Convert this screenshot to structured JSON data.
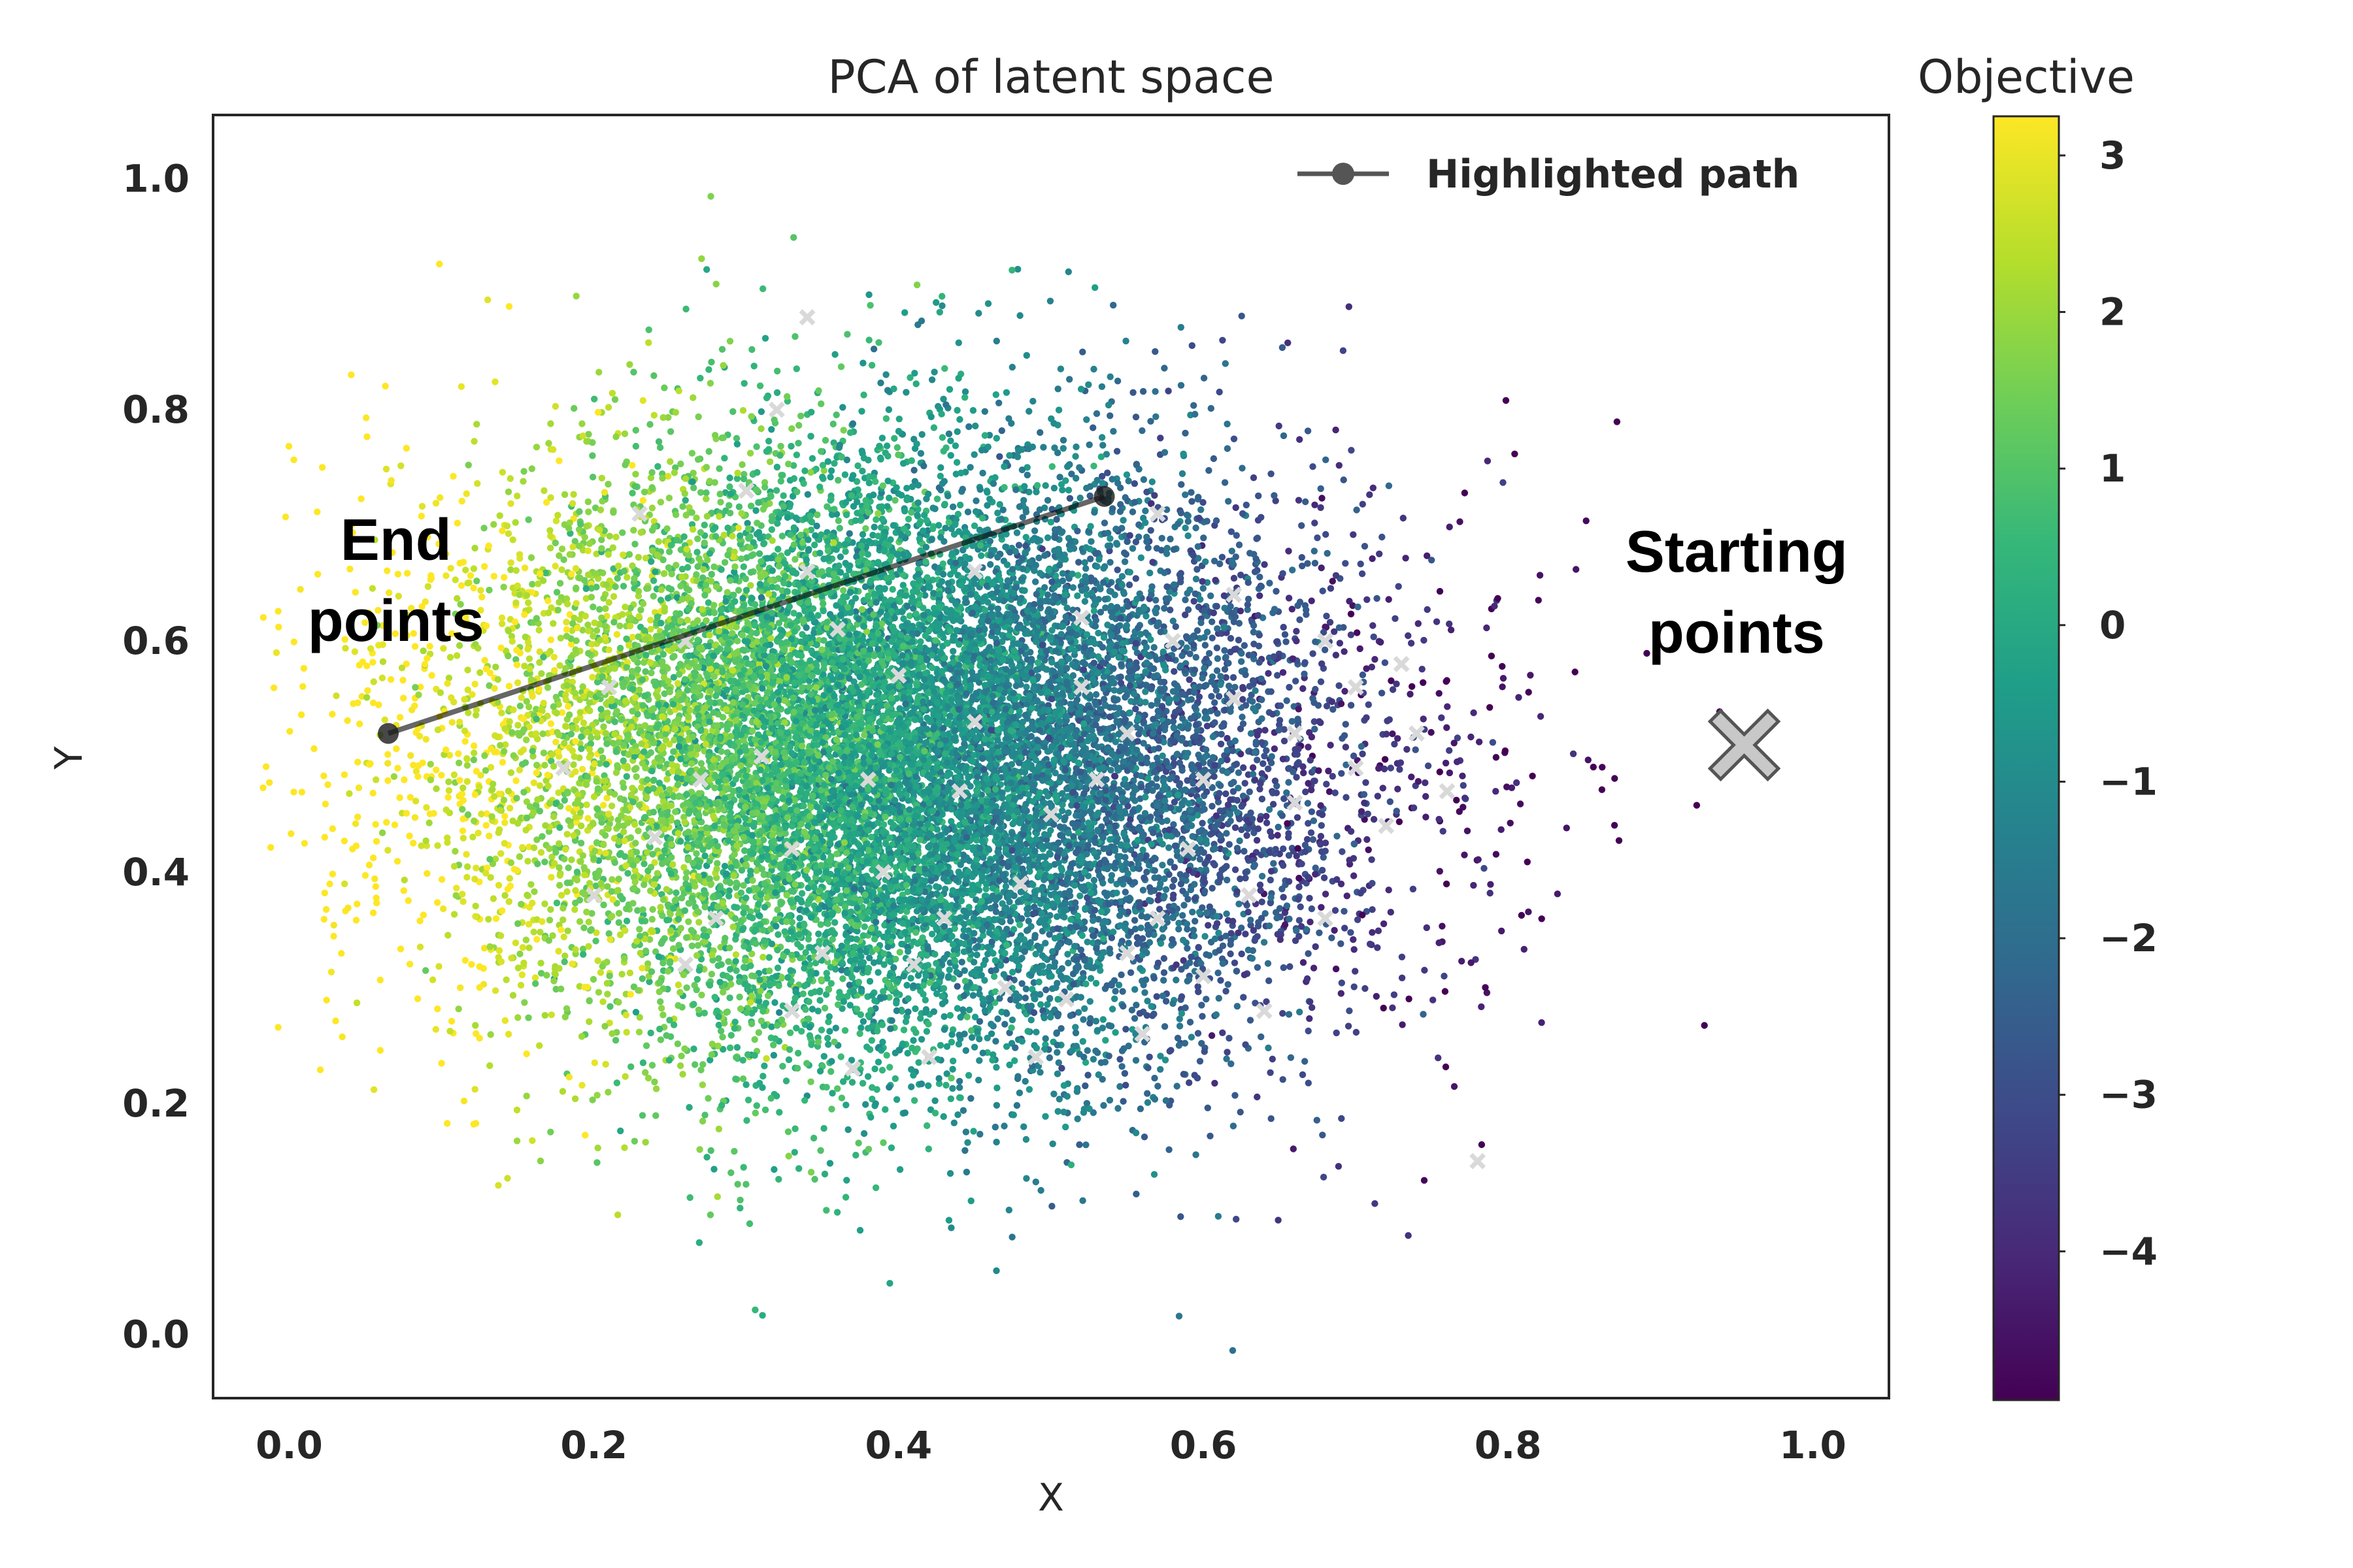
{
  "chart_data": {
    "type": "scatter",
    "title": "PCA of latent space",
    "xlabel": "X",
    "ylabel": "Y",
    "xlim": [
      -0.05,
      1.05
    ],
    "ylim": [
      -0.055,
      1.055
    ],
    "xticks": [
      0.0,
      0.2,
      0.4,
      0.6,
      0.8,
      1.0
    ],
    "yticks": [
      0.0,
      0.2,
      0.4,
      0.6,
      0.8,
      1.0
    ],
    "xtick_labels": [
      "0.0",
      "0.2",
      "0.4",
      "0.6",
      "0.8",
      "1.0"
    ],
    "ytick_labels": [
      "0.0",
      "0.2",
      "0.4",
      "0.6",
      "0.8",
      "1.0"
    ],
    "grid": false,
    "legend": {
      "position": "top-right",
      "entries": [
        "Highlighted path"
      ]
    },
    "colorbar": {
      "label": "Objective",
      "range": [
        -4.95,
        3.25
      ],
      "ticks": [
        3,
        2,
        1,
        0,
        -1,
        -2,
        -3,
        -4
      ],
      "tick_labels": [
        "3",
        "2",
        "1",
        "0",
        "−1",
        "−2",
        "−3",
        "−4"
      ],
      "colormap": "viridis"
    },
    "series": [
      {
        "name": "Highlighted path",
        "type": "line",
        "color": "#000000",
        "points": [
          [
            0.065,
            0.52
          ],
          [
            0.535,
            0.725
          ]
        ]
      },
      {
        "type": "scatter-cloud",
        "point_count_approx": 60000,
        "center": [
          0.4,
          0.5
        ],
        "x_range": [
          0.0,
          1.0
        ],
        "y_range": [
          0.0,
          0.99
        ],
        "value_trend": "objective decreases from about 3 at low X to about -4 at high X"
      },
      {
        "type": "markers",
        "marker": "x",
        "color": "#d9d9d9",
        "sample_points": [
          [
            0.23,
            0.71
          ],
          [
            0.3,
            0.73
          ],
          [
            0.34,
            0.66
          ],
          [
            0.45,
            0.66
          ],
          [
            0.52,
            0.62
          ],
          [
            0.58,
            0.6
          ],
          [
            0.62,
            0.55
          ],
          [
            0.66,
            0.52
          ],
          [
            0.7,
            0.56
          ],
          [
            0.55,
            0.52
          ],
          [
            0.5,
            0.45
          ],
          [
            0.48,
            0.39
          ],
          [
            0.43,
            0.36
          ],
          [
            0.57,
            0.36
          ],
          [
            0.63,
            0.38
          ],
          [
            0.66,
            0.46
          ],
          [
            0.6,
            0.48
          ],
          [
            0.53,
            0.48
          ],
          [
            0.45,
            0.53
          ],
          [
            0.4,
            0.57
          ],
          [
            0.36,
            0.61
          ],
          [
            0.31,
            0.5
          ],
          [
            0.27,
            0.48
          ],
          [
            0.24,
            0.43
          ],
          [
            0.28,
            0.36
          ],
          [
            0.33,
            0.42
          ],
          [
            0.39,
            0.4
          ],
          [
            0.35,
            0.33
          ],
          [
            0.41,
            0.32
          ],
          [
            0.47,
            0.3
          ],
          [
            0.51,
            0.29
          ],
          [
            0.55,
            0.33
          ],
          [
            0.6,
            0.31
          ],
          [
            0.64,
            0.28
          ],
          [
            0.68,
            0.36
          ],
          [
            0.72,
            0.44
          ],
          [
            0.74,
            0.52
          ],
          [
            0.56,
            0.26
          ],
          [
            0.49,
            0.24
          ],
          [
            0.42,
            0.24
          ],
          [
            0.37,
            0.23
          ],
          [
            0.33,
            0.28
          ],
          [
            0.26,
            0.32
          ],
          [
            0.2,
            0.38
          ],
          [
            0.18,
            0.49
          ],
          [
            0.21,
            0.56
          ],
          [
            0.26,
            0.6
          ],
          [
            0.38,
            0.48
          ],
          [
            0.44,
            0.47
          ],
          [
            0.62,
            0.64
          ],
          [
            0.68,
            0.6
          ],
          [
            0.73,
            0.58
          ],
          [
            0.57,
            0.71
          ],
          [
            0.52,
            0.56
          ],
          [
            0.59,
            0.42
          ],
          [
            0.7,
            0.49
          ],
          [
            0.76,
            0.47
          ],
          [
            0.78,
            0.15
          ],
          [
            0.34,
            0.88
          ],
          [
            0.32,
            0.8
          ]
        ]
      }
    ],
    "annotations": [
      {
        "text": "End",
        "at": [
          0.07,
          0.67
        ]
      },
      {
        "text": "points",
        "at": [
          0.07,
          0.6
        ]
      },
      {
        "text": "Starting",
        "at": [
          0.95,
          0.66
        ]
      },
      {
        "text": "points",
        "at": [
          0.95,
          0.59
        ]
      },
      {
        "text": "X",
        "marker": "x",
        "color": "#c8c8c8",
        "at": [
          0.955,
          0.51
        ]
      }
    ]
  }
}
